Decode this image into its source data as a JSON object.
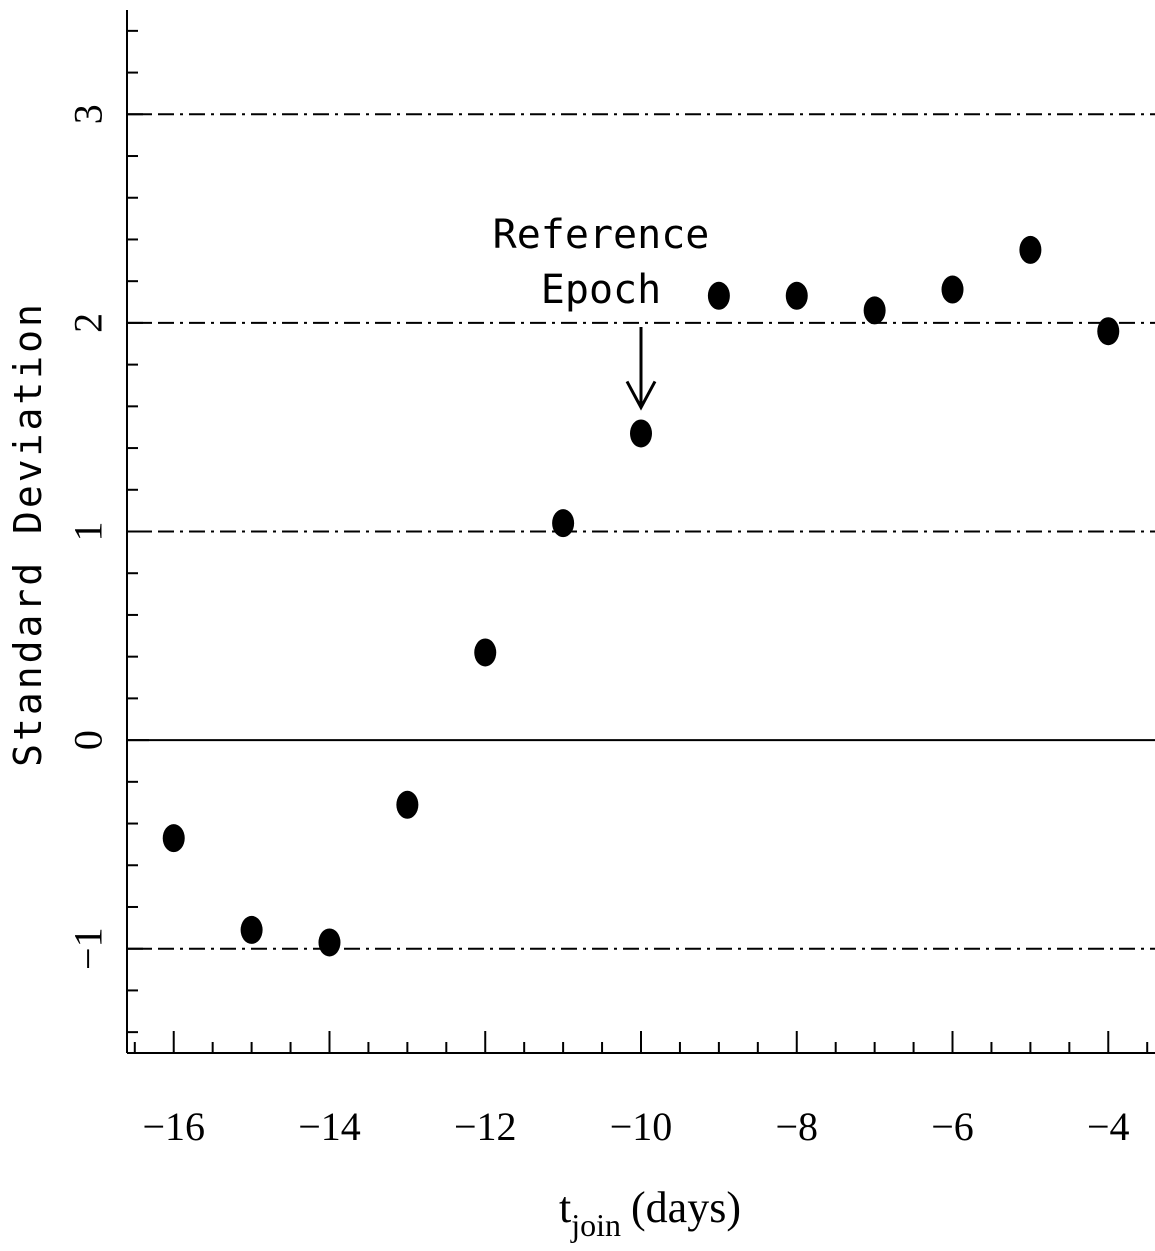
{
  "chart_data": {
    "type": "scatter",
    "title": "",
    "xlabel_main": "t",
    "xlabel_sub": "join",
    "xlabel_units": "(days)",
    "ylabel": "Standard Deviation",
    "xlim": [
      -16.6,
      -3.4
    ],
    "ylim": [
      -1.5,
      3.5
    ],
    "x_ticks": [
      -16,
      -14,
      -12,
      -10,
      -8,
      -6,
      -4
    ],
    "x_tick_labels": [
      "−16",
      "−14",
      "−12",
      "−10",
      "−8",
      "−6",
      "−4"
    ],
    "y_ticks": [
      -1,
      0,
      1,
      2,
      3
    ],
    "y_tick_labels": [
      "−1",
      "0",
      "1",
      "2",
      "3"
    ],
    "reference_lines": [
      {
        "y": 3,
        "style": "dash-dot"
      },
      {
        "y": 2,
        "style": "dash-dot"
      },
      {
        "y": 1,
        "style": "dash-dot"
      },
      {
        "y": 0,
        "style": "solid"
      },
      {
        "y": -1,
        "style": "dash-dot"
      }
    ],
    "points": [
      {
        "x": -16,
        "y": -0.47
      },
      {
        "x": -15,
        "y": -0.91
      },
      {
        "x": -14,
        "y": -0.97
      },
      {
        "x": -13,
        "y": -0.31
      },
      {
        "x": -12,
        "y": 0.42
      },
      {
        "x": -11,
        "y": 1.04
      },
      {
        "x": -10,
        "y": 1.47
      },
      {
        "x": -9,
        "y": 2.13
      },
      {
        "x": -8,
        "y": 2.13
      },
      {
        "x": -7,
        "y": 2.06
      },
      {
        "x": -6,
        "y": 2.16
      },
      {
        "x": -5,
        "y": 2.35
      },
      {
        "x": -4,
        "y": 1.96
      }
    ],
    "annotation": {
      "lines": [
        "Reference",
        "Epoch"
      ],
      "arrow_x": -10
    },
    "grid": false,
    "legend": "none"
  }
}
